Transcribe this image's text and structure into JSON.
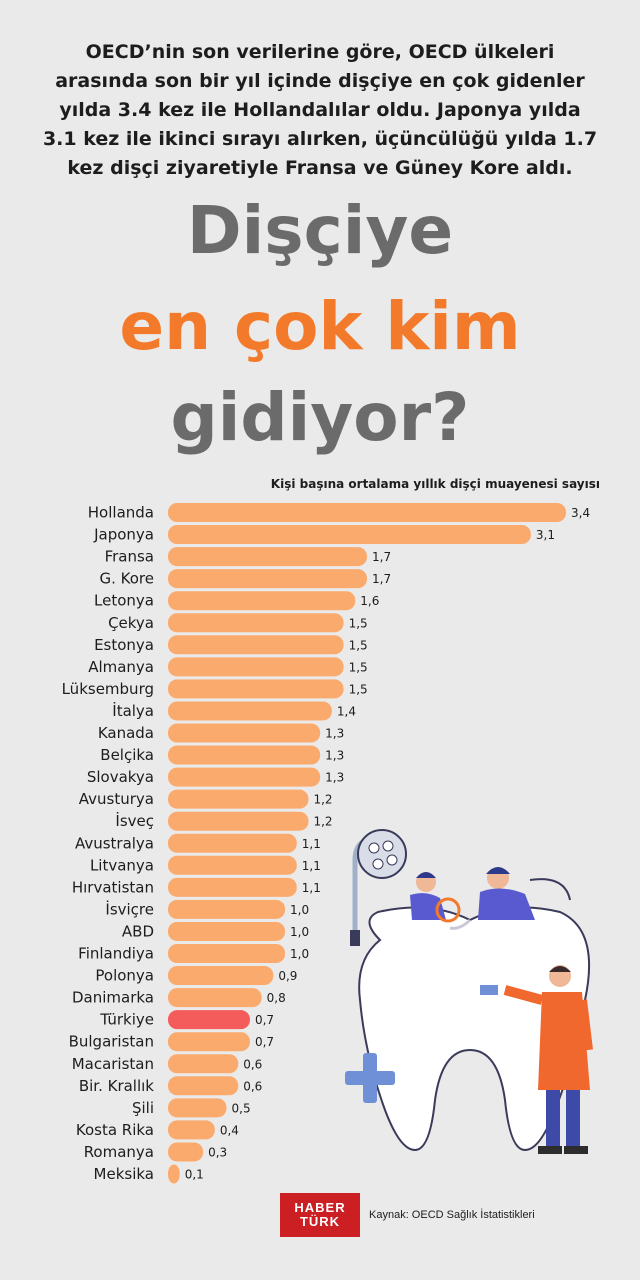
{
  "intro": "OECD’nin son verilerine göre, OECD ülkeleri arasında son bir yıl içinde dişçiye en çok gidenler yılda 3.4 kez ile Hollandalılar oldu. Japonya yılda 3.1 kez ile ikinci sırayı alırken, üçüncülüğü yılda 1.7 kez dişçi ziyaretiyle Fransa ve Güney Kore aldı.",
  "title": {
    "line1": "Dişçiye",
    "line2": "en çok kim",
    "line3": "gidiyor?"
  },
  "logo": {
    "line1": "HABER",
    "line2": "TÜRK"
  },
  "source": "Kaynak: OECD Sağlık İstatistikleri",
  "colors": {
    "bar": "#fbaa6e",
    "highlight": "#f45b5b",
    "title_gray": "#6b6b6b",
    "title_orange": "#f47a2b",
    "brand": "#cc1f24"
  },
  "chart_data": {
    "type": "bar",
    "orientation": "horizontal",
    "subtitle": "Kişi başına ortalama yıllık dişçi muayenesi sayısı",
    "categories": [
      "Hollanda",
      "Japonya",
      "Fransa",
      "G. Kore",
      "Letonya",
      "Çekya",
      "Estonya",
      "Almanya",
      "Lüksemburg",
      "İtalya",
      "Kanada",
      "Belçika",
      "Slovakya",
      "Avusturya",
      "İsveç",
      "Avustralya",
      "Litvanya",
      "Hırvatistan",
      "İsviçre",
      "ABD",
      "Finlandiya",
      "Polonya",
      "Danimarka",
      "Türkiye",
      "Bulgaristan",
      "Macaristan",
      "Bir. Krallık",
      "Şili",
      "Kosta Rika",
      "Romanya",
      "Meksika"
    ],
    "values": [
      3.4,
      3.1,
      1.7,
      1.7,
      1.6,
      1.5,
      1.5,
      1.5,
      1.5,
      1.4,
      1.3,
      1.3,
      1.3,
      1.2,
      1.2,
      1.1,
      1.1,
      1.1,
      1.0,
      1.0,
      1.0,
      0.9,
      0.8,
      0.7,
      0.7,
      0.6,
      0.6,
      0.5,
      0.4,
      0.3,
      0.1
    ],
    "value_labels": [
      "3,4",
      "3,1",
      "1,7",
      "1,7",
      "1,6",
      "1,5",
      "1,5",
      "1,5",
      "1,5",
      "1,4",
      "1,3",
      "1,3",
      "1,3",
      "1,2",
      "1,2",
      "1,1",
      "1,1",
      "1,1",
      "1,0",
      "1,0",
      "1,0",
      "0,9",
      "0,8",
      "0,7",
      "0,7",
      "0,6",
      "0,6",
      "0,5",
      "0,4",
      "0,3",
      "0,1"
    ],
    "highlight": "Türkiye",
    "xlim": [
      0,
      3.4
    ],
    "grid": false,
    "axes_shown": false
  }
}
